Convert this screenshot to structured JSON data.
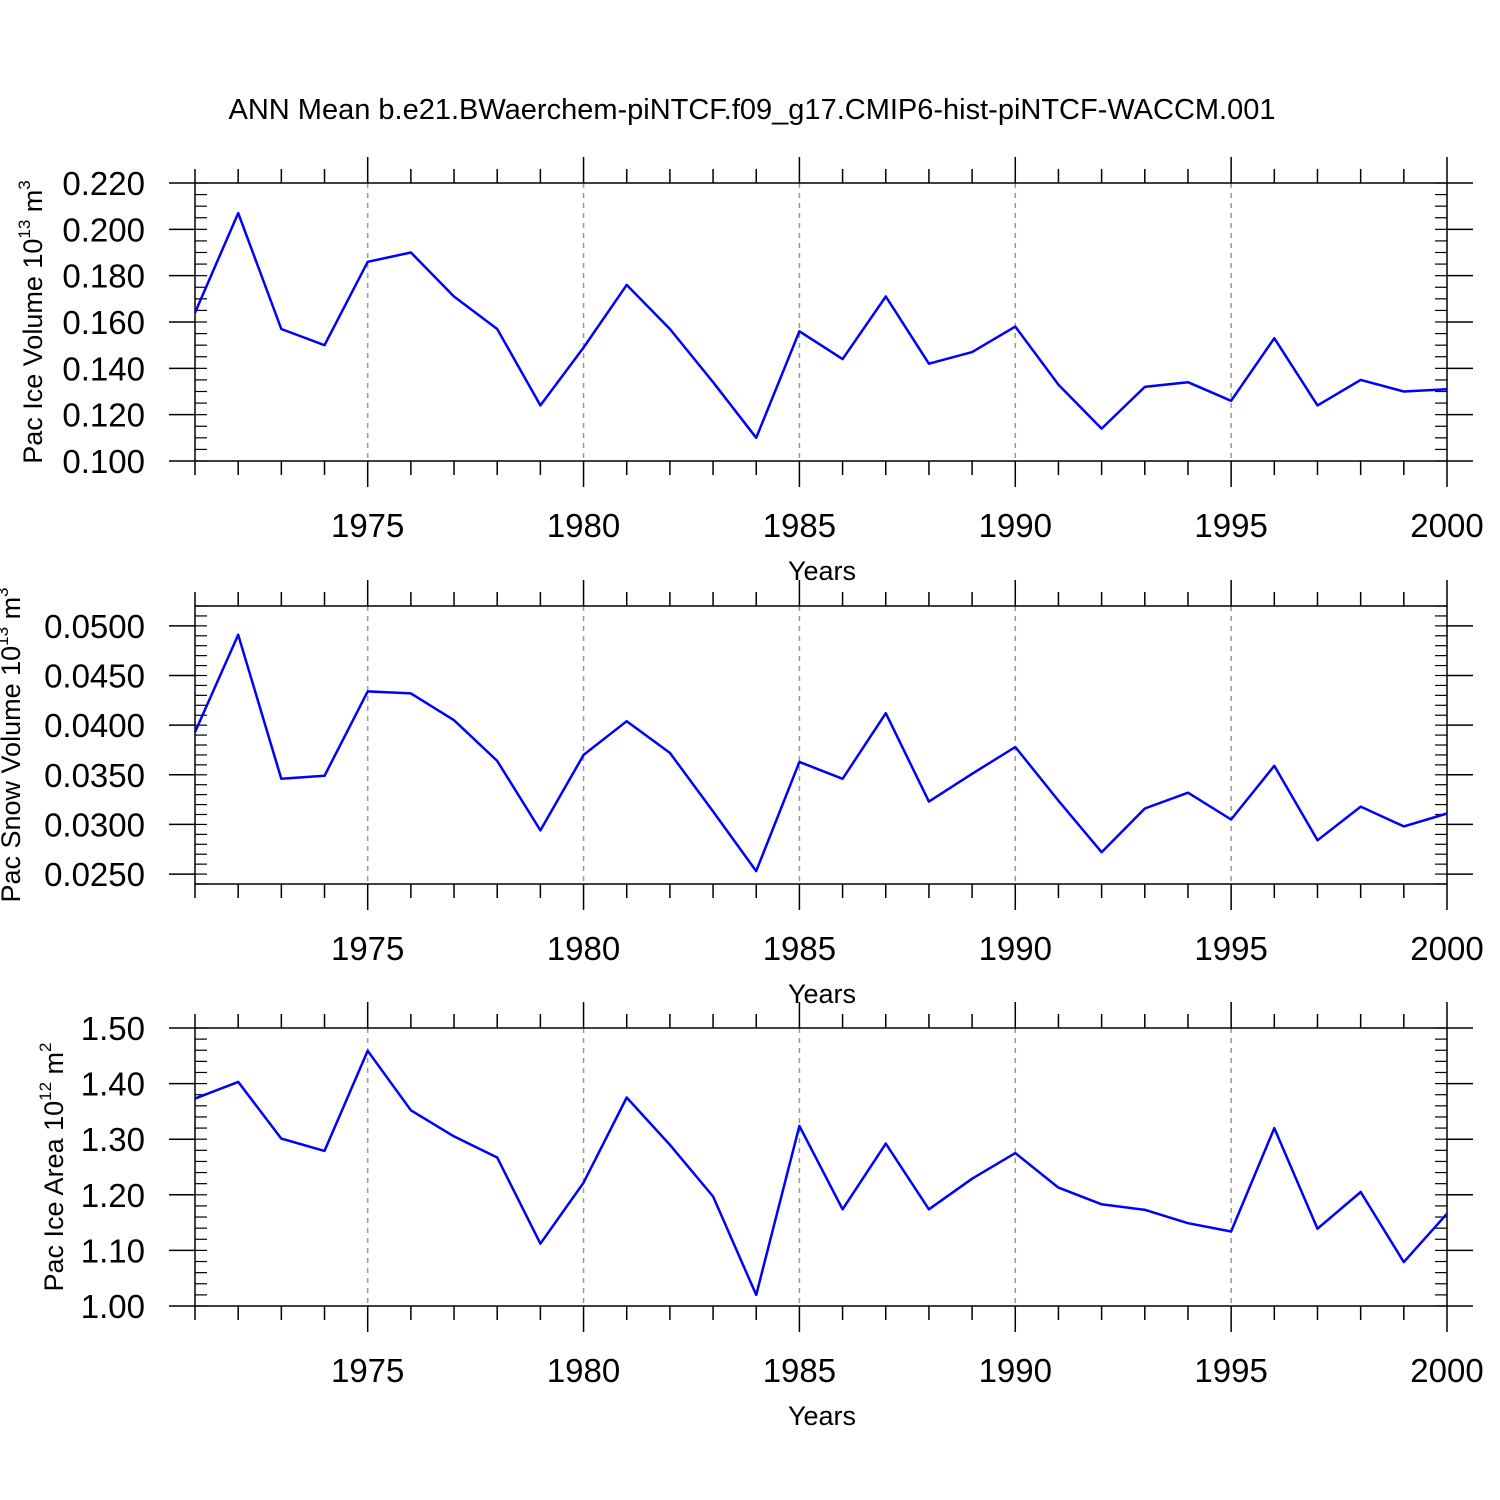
{
  "title": "ANN Mean b.e21.BWaerchem-piNTCF.f09_g17.CMIP6-hist-piNTCF-WACCM.001",
  "colors": {
    "line": "#0000ff",
    "axis": "#000000",
    "grid": "#999999",
    "background": "#ffffff"
  },
  "chart_data": [
    {
      "type": "line",
      "name": "pac-ice-volume",
      "ylabel": "Pac Ice Volume 10",
      "ylabel_exp": "13",
      "ylabel_unit": " m",
      "ylabel_unit_exp": "3",
      "xlabel": "Years",
      "xlim": [
        1971,
        2000
      ],
      "ylim": [
        0.1,
        0.22
      ],
      "yticks": [
        0.1,
        0.12,
        0.14,
        0.16,
        0.18,
        0.2,
        0.22
      ],
      "ytick_labels": [
        "0.100",
        "0.120",
        "0.140",
        "0.160",
        "0.180",
        "0.200",
        "0.220"
      ],
      "yminor_step": 0.005,
      "xticks": [
        1975,
        1980,
        1985,
        1990,
        1995,
        2000
      ],
      "xtick_labels": [
        "1975",
        "1980",
        "1985",
        "1990",
        "1995",
        "2000"
      ],
      "grid_x": [
        1975,
        1980,
        1985,
        1990,
        1995
      ],
      "x": [
        1971,
        1972,
        1973,
        1974,
        1975,
        1976,
        1977,
        1978,
        1979,
        1980,
        1981,
        1982,
        1983,
        1984,
        1985,
        1986,
        1987,
        1988,
        1989,
        1990,
        1991,
        1992,
        1993,
        1994,
        1995,
        1996,
        1997,
        1998,
        1999,
        2000
      ],
      "values": [
        0.164,
        0.207,
        0.157,
        0.15,
        0.186,
        0.19,
        0.171,
        0.157,
        0.124,
        0.149,
        0.176,
        0.157,
        0.134,
        0.11,
        0.156,
        0.144,
        0.171,
        0.142,
        0.147,
        0.158,
        0.133,
        0.114,
        0.132,
        0.134,
        0.126,
        0.153,
        0.124,
        0.135,
        0.13,
        0.131
      ]
    },
    {
      "type": "line",
      "name": "pac-snow-volume",
      "ylabel": "Pac Snow Volume 10",
      "ylabel_exp": "13",
      "ylabel_unit": " m",
      "ylabel_unit_exp": "3",
      "xlabel": "Years",
      "xlim": [
        1971,
        2000
      ],
      "ylim": [
        0.024,
        0.052
      ],
      "yticks": [
        0.025,
        0.03,
        0.035,
        0.04,
        0.045,
        0.05
      ],
      "ytick_labels": [
        "0.0250",
        "0.0300",
        "0.0350",
        "0.0400",
        "0.0450",
        "0.0500"
      ],
      "yminor_step": 0.001,
      "xticks": [
        1975,
        1980,
        1985,
        1990,
        1995,
        2000
      ],
      "xtick_labels": [
        "1975",
        "1980",
        "1985",
        "1990",
        "1995",
        "2000"
      ],
      "grid_x": [
        1975,
        1980,
        1985,
        1990,
        1995
      ],
      "x": [
        1971,
        1972,
        1973,
        1974,
        1975,
        1976,
        1977,
        1978,
        1979,
        1980,
        1981,
        1982,
        1983,
        1984,
        1985,
        1986,
        1987,
        1988,
        1989,
        1990,
        1991,
        1992,
        1993,
        1994,
        1995,
        1996,
        1997,
        1998,
        1999,
        2000
      ],
      "values": [
        0.0393,
        0.0491,
        0.0346,
        0.0349,
        0.0434,
        0.0432,
        0.0405,
        0.0364,
        0.0294,
        0.037,
        0.0404,
        0.0372,
        0.0313,
        0.0253,
        0.0363,
        0.0346,
        0.0412,
        0.0323,
        0.0351,
        0.0378,
        0.0324,
        0.0272,
        0.0316,
        0.0332,
        0.0305,
        0.0359,
        0.0284,
        0.0318,
        0.0298,
        0.0311
      ]
    },
    {
      "type": "line",
      "name": "pac-ice-area",
      "ylabel": "Pac Ice Area 10",
      "ylabel_exp": "12",
      "ylabel_unit": " m",
      "ylabel_unit_exp": "2",
      "xlabel": "Years",
      "xlim": [
        1971,
        2000
      ],
      "ylim": [
        1.0,
        1.5
      ],
      "yticks": [
        1.0,
        1.1,
        1.2,
        1.3,
        1.4,
        1.5
      ],
      "ytick_labels": [
        "1.00",
        "1.10",
        "1.20",
        "1.30",
        "1.40",
        "1.50"
      ],
      "yminor_step": 0.02,
      "xticks": [
        1975,
        1980,
        1985,
        1990,
        1995,
        2000
      ],
      "xtick_labels": [
        "1975",
        "1980",
        "1985",
        "1990",
        "1995",
        "2000"
      ],
      "grid_x": [
        1975,
        1980,
        1985,
        1990,
        1995
      ],
      "x": [
        1971,
        1972,
        1973,
        1974,
        1975,
        1976,
        1977,
        1978,
        1979,
        1980,
        1981,
        1982,
        1983,
        1984,
        1985,
        1986,
        1987,
        1988,
        1989,
        1990,
        1991,
        1992,
        1993,
        1994,
        1995,
        1996,
        1997,
        1998,
        1999,
        2000
      ],
      "values": [
        1.373,
        1.403,
        1.301,
        1.279,
        1.459,
        1.352,
        1.305,
        1.267,
        1.112,
        1.222,
        1.375,
        1.29,
        1.197,
        1.02,
        1.324,
        1.174,
        1.292,
        1.174,
        1.229,
        1.275,
        1.213,
        1.183,
        1.173,
        1.149,
        1.134,
        1.32,
        1.139,
        1.205,
        1.079,
        1.166
      ]
    }
  ]
}
